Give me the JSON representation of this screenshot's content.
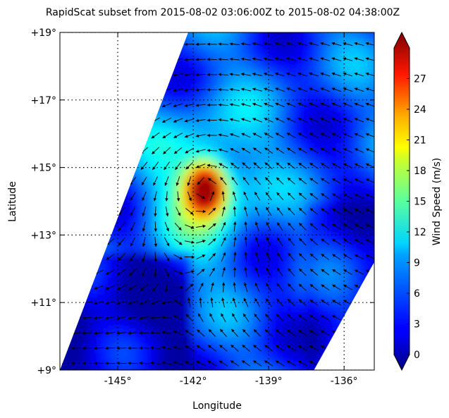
{
  "chart_data": {
    "type": "heatmap",
    "title": "RapidScat subset from 2015-08-02 03:06:00Z to 2015-08-02 04:38:00Z",
    "xlabel": "Longitude",
    "ylabel": "Latitude",
    "xlim": [
      -147.3,
      -134.8
    ],
    "ylim": [
      9,
      19
    ],
    "x_ticks": [
      {
        "value": -145,
        "label": "-145°"
      },
      {
        "value": -142,
        "label": "-142°"
      },
      {
        "value": -139,
        "label": "-139°"
      },
      {
        "value": -136,
        "label": "-136°"
      }
    ],
    "y_ticks": [
      {
        "value": 9,
        "label": "+9°"
      },
      {
        "value": 11,
        "label": "+11°"
      },
      {
        "value": 13,
        "label": "+13°"
      },
      {
        "value": 15,
        "label": "+15°"
      },
      {
        "value": 17,
        "label": "+17°"
      },
      {
        "value": 19,
        "label": "+19°"
      }
    ],
    "grid": true,
    "colorbar": {
      "label": "Wind Speed (m/s)",
      "range": [
        0,
        30
      ],
      "ticks": [
        {
          "value": 0,
          "label": "0"
        },
        {
          "value": 3,
          "label": "3"
        },
        {
          "value": 6,
          "label": "6"
        },
        {
          "value": 9,
          "label": "9"
        },
        {
          "value": 12,
          "label": "12"
        },
        {
          "value": 15,
          "label": "15"
        },
        {
          "value": 18,
          "label": "18"
        },
        {
          "value": 21,
          "label": "21"
        },
        {
          "value": 24,
          "label": "24"
        },
        {
          "value": 27,
          "label": "27"
        }
      ],
      "colormap": "jet",
      "extend": "both"
    },
    "swath_corners_deg": [
      {
        "lon": -147.3,
        "lat": 9.0
      },
      {
        "lon": -142.2,
        "lat": 19.0
      },
      {
        "lon": -134.8,
        "lat": 19.0
      },
      {
        "lon": -134.8,
        "lat": 12.2
      },
      {
        "lon": -137.2,
        "lat": 9.0
      }
    ],
    "storm_center": {
      "lon": -141.5,
      "lat": 14.4
    },
    "max_wind_speed": 28,
    "vector_field": "wind vectors circulating counter-clockwise around the storm center"
  }
}
